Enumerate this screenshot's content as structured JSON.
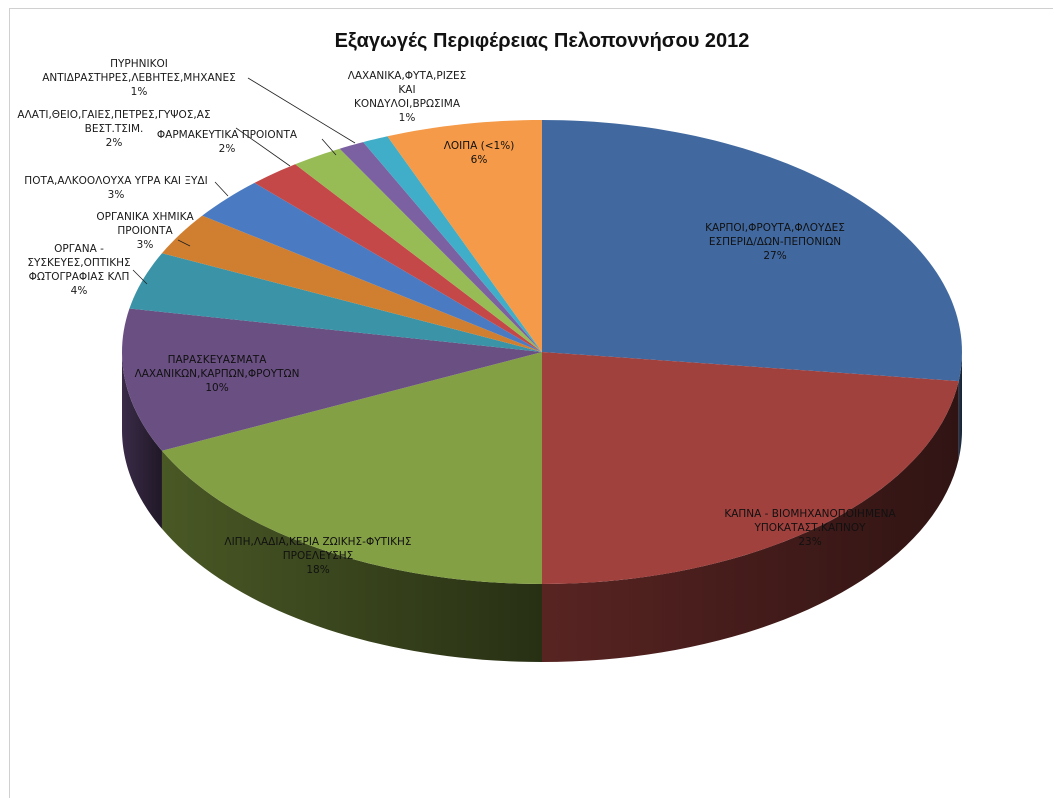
{
  "chart_data": {
    "type": "pie",
    "title": "Εξαγωγές Περιφέρειας Πελοποννήσου 2012",
    "slices": [
      {
        "label_lines": [
          "ΚΑΡΠΟΙ,ΦΡΟΥΤΑ,ΦΛΟΥΔΕΣ",
          "ΕΣΠΕΡΙΔ/ΔΩΝ-ΠΕΠΟΝΙΩΝ"
        ],
        "percent_label": "27%",
        "value": 27,
        "color": "#4169a0"
      },
      {
        "label_lines": [
          "ΚΑΠΝΑ - ΒΙΟΜΗΧΑΝΟΠΟΙΗΜΕΝΑ",
          "ΥΠΟΚΑΤΑΣΤ.ΚΑΠΝΟΥ"
        ],
        "percent_label": "23%",
        "value": 23,
        "color": "#a0413e"
      },
      {
        "label_lines": [
          "ΛΙΠΗ,ΛΑΔΙΑ,ΚΕΡΙΑ ΖΩΙΚΗΣ-ΦΥΤΙΚΗΣ",
          "ΠΡΟΕΛΕΥΣΗΣ"
        ],
        "percent_label": "18%",
        "value": 18,
        "color": "#84a044"
      },
      {
        "label_lines": [
          "ΠΑΡΑΣΚΕΥΑΣΜΑΤΑ",
          "ΛΑΧΑΝΙΚΩΝ,ΚΑΡΠΩΝ,ΦΡΟΥΤΩΝ"
        ],
        "percent_label": "10%",
        "value": 10,
        "color": "#6a4f82"
      },
      {
        "label_lines": [
          "ΟΡΓΑΝΑ -",
          "ΣΥΣΚΕΥΕΣ,ΟΠΤΙΚΗΣ",
          "ΦΩΤΟΓΡΑΦΙΑΣ ΚΛΠ"
        ],
        "percent_label": "4%",
        "value": 4,
        "color": "#3a93a6"
      },
      {
        "label_lines": [
          "ΟΡΓΑΝΙΚΑ ΧΗΜΙΚΑ",
          "ΠΡΟΙΟΝΤΑ"
        ],
        "percent_label": "3%",
        "value": 3,
        "color": "#d07f30"
      },
      {
        "label_lines": [
          "ΠΟΤΑ,ΑΛΚΟΟΛΟΥΧΑ ΥΓΡΑ ΚΑΙ ΞΥΔΙ"
        ],
        "percent_label": "3%",
        "value": 3,
        "color": "#4a7bc2"
      },
      {
        "label_lines": [
          "ΑΛΑΤΙ,ΘΕΙΟ,ΓΑΙΕΣ,ΠΕΤΡΕΣ,ΓΥΨΟΣ,ΑΣ",
          "ΒΕΣΤ.ΤΣΙΜ."
        ],
        "percent_label": "2%",
        "value": 2,
        "color": "#c54848"
      },
      {
        "label_lines": [
          "ΦΑΡΜΑΚΕΥΤΙΚΑ ΠΡΟΙΟΝΤΑ"
        ],
        "percent_label": "2%",
        "value": 2,
        "color": "#97bc56"
      },
      {
        "label_lines": [
          "ΠΥΡΗΝΙΚΟΙ",
          "ΑΝΤΙΔΡΑΣΤΗΡΕΣ,ΛΕΒΗΤΕΣ,ΜΗΧΑΝΕΣ"
        ],
        "percent_label": "1%",
        "value": 1,
        "color": "#7c61a2"
      },
      {
        "label_lines": [
          "ΛΑΧΑΝΙΚΑ,ΦΥΤΑ,ΡΙΖΕΣ",
          "ΚΑΙ",
          "ΚΟΝΔΥΛΟΙ,ΒΡΩΣΙΜΑ"
        ],
        "percent_label": "1%",
        "value": 1,
        "color": "#40aec8"
      },
      {
        "label_lines": [
          "ΛΟΙΠΑ (<1%)"
        ],
        "percent_label": "6%",
        "value": 6,
        "color": "#f59a48"
      }
    ],
    "legend": "none",
    "style": "3d"
  }
}
